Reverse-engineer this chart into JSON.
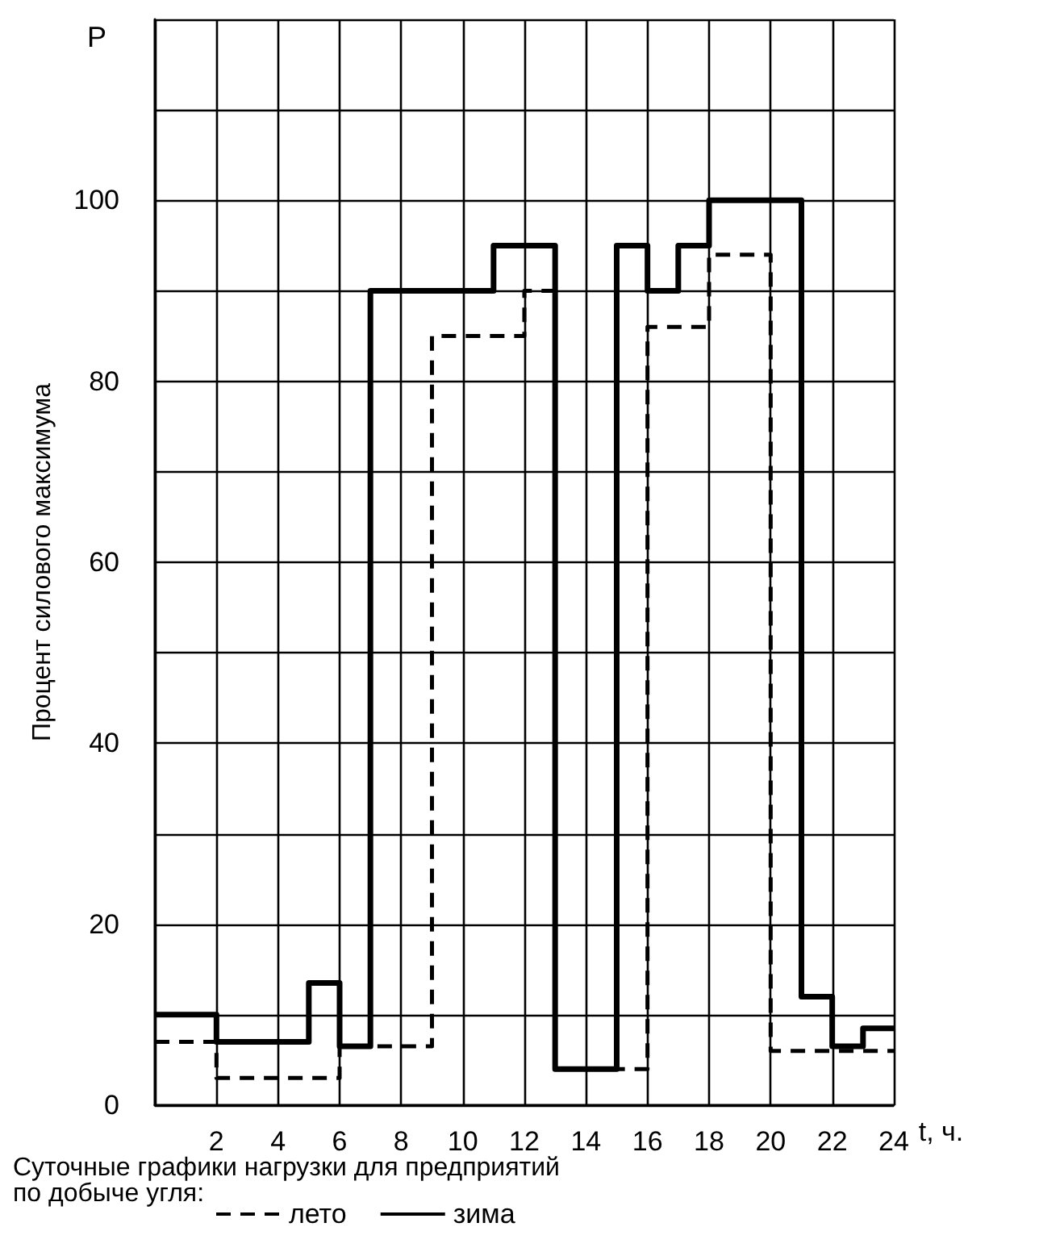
{
  "chart_data": {
    "type": "step",
    "xlabel": "t, ч.",
    "ylabel": "Процент силового максимума",
    "annotations": [
      "P",
      "Суточные графики нагрузки для предприятий по добыче угля:"
    ],
    "xlim": [
      0,
      24
    ],
    "xticks": [
      {
        "value": 0,
        "label": null
      },
      2,
      4,
      6,
      8,
      10,
      12,
      14,
      16,
      18,
      20,
      22,
      24
    ],
    "ylim": [
      0,
      120
    ],
    "yticks": [
      0,
      {
        "value": 10,
        "label": null
      },
      20,
      {
        "value": 30,
        "label": null
      },
      40,
      {
        "value": 50,
        "label": null
      },
      60,
      {
        "value": 70,
        "label": null
      },
      80,
      {
        "value": 90,
        "label": null
      },
      100,
      {
        "value": 110,
        "label": null
      },
      {
        "value": 120,
        "label": null
      }
    ],
    "grid": true,
    "legend": "bottom",
    "series": [
      {
        "name": "лето",
        "color": "#000000",
        "line_style": "dashed",
        "x": [
          0,
          2,
          6,
          9,
          12,
          13,
          16,
          18,
          20,
          24
        ],
        "values": [
          7,
          3,
          6.5,
          85,
          90,
          4,
          86,
          94,
          6,
          6
        ]
      },
      {
        "name": "зима",
        "color": "#000000",
        "line_style": "solid",
        "x": [
          0,
          2,
          5,
          6,
          7,
          11,
          13,
          15,
          16,
          17,
          18,
          21,
          22,
          23,
          24
        ],
        "values": [
          10,
          7,
          13.5,
          6.5,
          90,
          95,
          4,
          95,
          90,
          95,
          100,
          12,
          6.5,
          8.5,
          8.5
        ]
      }
    ]
  }
}
